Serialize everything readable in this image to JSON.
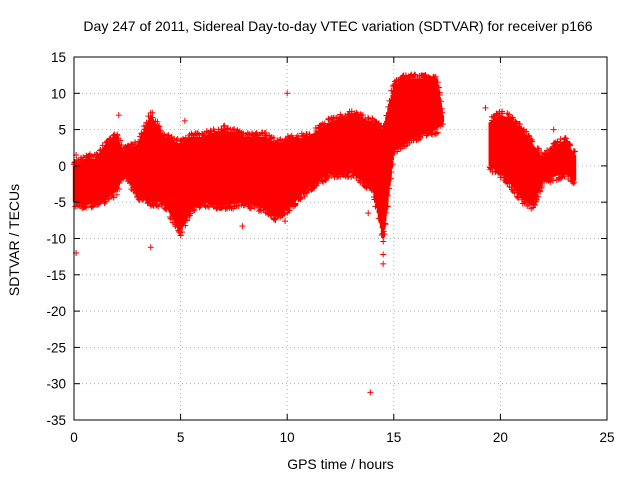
{
  "chart_data": {
    "type": "scatter",
    "title": "Day 247 of 2011, Sidereal Day-to-day VTEC variation (SDTVAR) for receiver p166",
    "xlabel": "GPS time / hours",
    "ylabel": "SDTVAR / TECUs",
    "xlim": [
      0,
      25
    ],
    "ylim": [
      -35,
      15
    ],
    "x_ticks": [
      0,
      5,
      10,
      15,
      20,
      25
    ],
    "y_ticks": [
      -35,
      -30,
      -25,
      -20,
      -15,
      -10,
      -5,
      0,
      5,
      10,
      15
    ],
    "grid": true,
    "marker": "+",
    "color": "#ff0000",
    "series": [
      {
        "name": "SDTVAR",
        "envelope": [
          {
            "x": 0.0,
            "lo": -5.0,
            "hi": 0.0
          },
          {
            "x": 0.5,
            "lo": -5.5,
            "hi": 1.0
          },
          {
            "x": 1.0,
            "lo": -5.0,
            "hi": 1.0
          },
          {
            "x": 1.5,
            "lo": -4.5,
            "hi": 3.0
          },
          {
            "x": 2.0,
            "lo": -3.5,
            "hi": 4.0
          },
          {
            "x": 2.3,
            "lo": -1.0,
            "hi": 2.0
          },
          {
            "x": 3.0,
            "lo": -4.0,
            "hi": 3.0
          },
          {
            "x": 3.6,
            "lo": -5.0,
            "hi": 7.0
          },
          {
            "x": 4.2,
            "lo": -5.0,
            "hi": 4.0
          },
          {
            "x": 5.0,
            "lo": -9.0,
            "hi": 3.0
          },
          {
            "x": 5.5,
            "lo": -6.0,
            "hi": 4.0
          },
          {
            "x": 6.0,
            "lo": -5.0,
            "hi": 4.0
          },
          {
            "x": 7.0,
            "lo": -5.5,
            "hi": 5.0
          },
          {
            "x": 8.0,
            "lo": -5.0,
            "hi": 4.0
          },
          {
            "x": 9.0,
            "lo": -6.0,
            "hi": 4.0
          },
          {
            "x": 9.5,
            "lo": -7.0,
            "hi": 3.0
          },
          {
            "x": 10.0,
            "lo": -6.0,
            "hi": 3.5
          },
          {
            "x": 11.0,
            "lo": -3.0,
            "hi": 4.0
          },
          {
            "x": 12.0,
            "lo": -1.0,
            "hi": 6.0
          },
          {
            "x": 13.0,
            "lo": -1.0,
            "hi": 7.0
          },
          {
            "x": 14.0,
            "lo": -3.0,
            "hi": 6.0
          },
          {
            "x": 14.5,
            "lo": -10.0,
            "hi": 5.0
          },
          {
            "x": 15.0,
            "lo": 2.0,
            "hi": 11.0
          },
          {
            "x": 15.5,
            "lo": 3.0,
            "hi": 12.0
          },
          {
            "x": 16.0,
            "lo": 4.0,
            "hi": 12.0
          },
          {
            "x": 17.0,
            "lo": 5.0,
            "hi": 12.0
          },
          {
            "x": 17.3,
            "lo": 6.0,
            "hi": 7.0
          },
          {
            "x": 19.5,
            "lo": 0.0,
            "hi": 6.0
          },
          {
            "x": 20.0,
            "lo": -1.0,
            "hi": 7.0
          },
          {
            "x": 20.5,
            "lo": -2.5,
            "hi": 6.5
          },
          {
            "x": 21.0,
            "lo": -4.5,
            "hi": 5.0
          },
          {
            "x": 21.5,
            "lo": -5.5,
            "hi": 3.0
          },
          {
            "x": 22.0,
            "lo": -2.0,
            "hi": 1.0
          },
          {
            "x": 22.5,
            "lo": -1.5,
            "hi": 2.5
          },
          {
            "x": 23.0,
            "lo": -1.0,
            "hi": 3.5
          },
          {
            "x": 23.5,
            "lo": -2.0,
            "hi": 1.5
          }
        ],
        "outliers": [
          {
            "x": 0.1,
            "y": -12.0
          },
          {
            "x": 0.1,
            "y": 1.5
          },
          {
            "x": 2.1,
            "y": 7.0
          },
          {
            "x": 3.6,
            "y": -11.2
          },
          {
            "x": 5.2,
            "y": 6.2
          },
          {
            "x": 7.9,
            "y": -8.3
          },
          {
            "x": 9.9,
            "y": -7.6
          },
          {
            "x": 10.0,
            "y": 10.0
          },
          {
            "x": 13.8,
            "y": -6.5
          },
          {
            "x": 13.9,
            "y": -31.2
          },
          {
            "x": 14.5,
            "y": -13.5
          },
          {
            "x": 14.5,
            "y": -12.2
          },
          {
            "x": 19.3,
            "y": 8.0
          },
          {
            "x": 22.5,
            "y": 5.0
          }
        ]
      }
    ]
  }
}
